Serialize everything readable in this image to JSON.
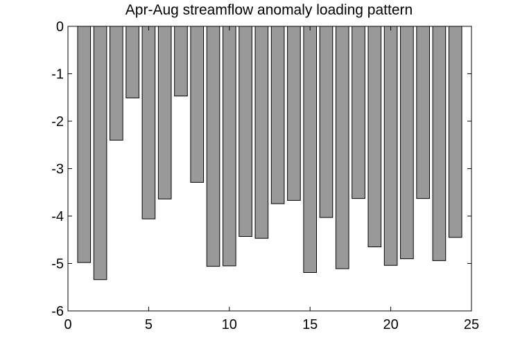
{
  "chart_data": {
    "type": "bar",
    "title": "Apr-Aug streamflow anomaly loading pattern",
    "xlabel": "",
    "ylabel": "",
    "xlim": [
      0,
      25
    ],
    "ylim": [
      -6,
      0
    ],
    "x_ticks": [
      0,
      5,
      10,
      15,
      20,
      25
    ],
    "y_ticks": [
      0,
      -1,
      -2,
      -3,
      -4,
      -5,
      -6
    ],
    "x": [
      1,
      2,
      3,
      4,
      5,
      6,
      7,
      8,
      9,
      10,
      11,
      12,
      13,
      14,
      15,
      16,
      17,
      18,
      19,
      20,
      21,
      22,
      23,
      24
    ],
    "values": [
      -4.98,
      -5.34,
      -2.4,
      -1.51,
      -4.06,
      -3.64,
      -1.47,
      -3.29,
      -5.06,
      -5.05,
      -4.43,
      -4.47,
      -3.74,
      -3.67,
      -5.19,
      -4.03,
      -5.11,
      -3.63,
      -4.65,
      -5.04,
      -4.9,
      -3.63,
      -4.94,
      -4.45
    ],
    "bar_color": "#999999",
    "edge_color": "#000000",
    "grid": false,
    "legend": "none"
  }
}
